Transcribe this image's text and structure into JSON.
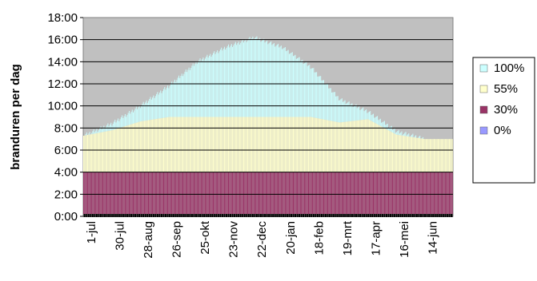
{
  "chart_data": {
    "type": "bar",
    "stacked": true,
    "ylabel": "branduren per dag",
    "ylim": [
      0,
      18
    ],
    "yticks": [
      "0:00",
      "2:00",
      "4:00",
      "6:00",
      "8:00",
      "10:00",
      "12:00",
      "14:00",
      "16:00",
      "18:00"
    ],
    "xticks": [
      "1-jul",
      "30-jul",
      "28-aug",
      "26-sep",
      "25-okt",
      "23-nov",
      "22-dec",
      "20-jan",
      "18-feb",
      "19-mrt",
      "17-apr",
      "16-mei",
      "14-jun"
    ],
    "grid": true,
    "plot_background": "#c0c0c0",
    "legend_position": "right",
    "series": [
      {
        "name": "0%",
        "color": "#9999ff",
        "values": [
          0,
          0,
          0,
          0,
          0,
          0,
          0,
          0,
          0,
          0,
          0,
          0,
          0,
          0
        ]
      },
      {
        "name": "30%",
        "color": "#993366",
        "values": [
          4,
          4,
          4,
          4,
          4,
          4,
          4,
          4,
          4,
          4,
          4,
          4,
          4,
          4
        ]
      },
      {
        "name": "55%",
        "color": "#ffffcc",
        "values": [
          3.3,
          3.8,
          4.6,
          5.0,
          5.0,
          5.0,
          5.0,
          5.0,
          5.0,
          4.5,
          4.8,
          3.4,
          3.0,
          3.0
        ]
      },
      {
        "name": "100%",
        "color": "#ccffff",
        "values": [
          0,
          0.6,
          1.4,
          2.8,
          5.0,
          6.3,
          7.2,
          6.3,
          4.5,
          2.1,
          0.7,
          0.3,
          0,
          0
        ]
      }
    ]
  }
}
